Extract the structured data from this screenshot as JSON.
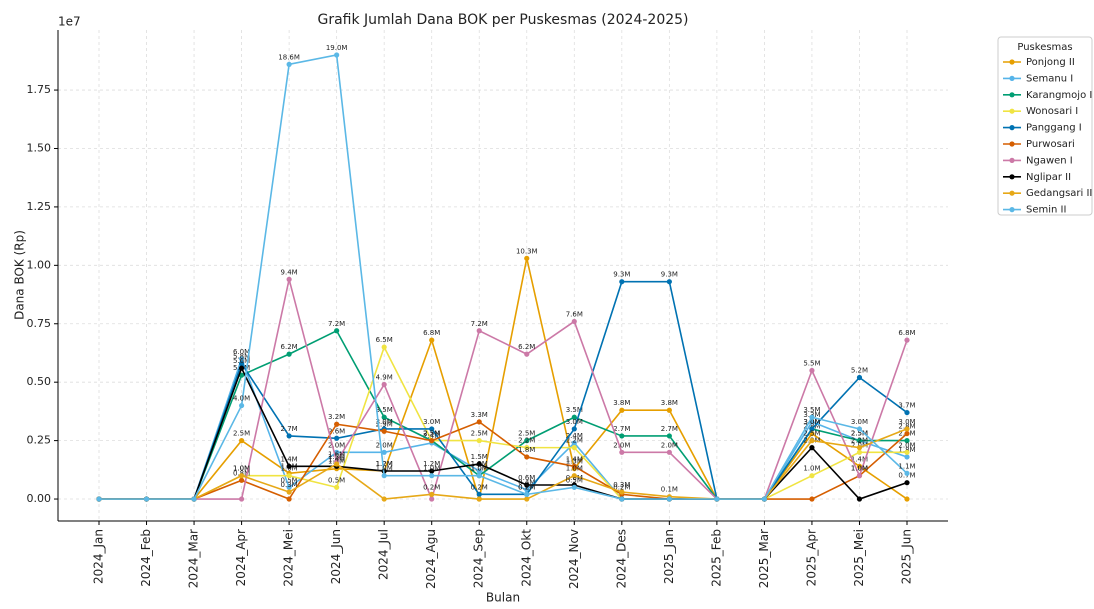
{
  "chart_data": {
    "type": "line",
    "title": "Grafik Jumlah Dana BOK per Puskesmas (2024-2025)",
    "xlabel": "Bulan",
    "ylabel": "Dana BOK (Rp)",
    "y_offset_label": "1e7",
    "legend_title": "Puskesmas",
    "legend": "upper right outside",
    "grid": true,
    "categories": [
      "2024_Jan",
      "2024_Feb",
      "2024_Mar",
      "2024_Apr",
      "2024_Mei",
      "2024_Jun",
      "2024_Jul",
      "2024_Agu",
      "2024_Sep",
      "2024_Okt",
      "2024_Nov",
      "2024_Des",
      "2025_Jan",
      "2025_Feb",
      "2025_Mar",
      "2025_Apr",
      "2025_Mei",
      "2025_Jun"
    ],
    "ylim": [
      -0.094,
      2.007
    ],
    "yticks": [
      {
        "value": 0,
        "label": "0.00"
      },
      {
        "value": 0.25,
        "label": "0.25"
      },
      {
        "value": 0.5,
        "label": "0.50"
      },
      {
        "value": 0.75,
        "label": "0.75"
      },
      {
        "value": 1,
        "label": "1.00"
      },
      {
        "value": 1.25,
        "label": "1.25"
      },
      {
        "value": 1.5,
        "label": "1.50"
      },
      {
        "value": 1.75,
        "label": "1.75"
      }
    ],
    "series": [
      {
        "name": "Ponjong II",
        "color": "#E69F00",
        "values": [
          0,
          0,
          0,
          0.25,
          0.11,
          0.13,
          0.12,
          0.68,
          0,
          1.03,
          0.13,
          0.38,
          0.38,
          0,
          0,
          0.28,
          0.14,
          0
        ],
        "value_labels": [
          null,
          null,
          null,
          "2.5M",
          "1.1M",
          "1.3M",
          "1.2M",
          "6.8M",
          null,
          "10.3M",
          "1.3M",
          "3.8M",
          "3.8M",
          null,
          null,
          "2.8M",
          "1.4M",
          null
        ]
      },
      {
        "name": "Semanu I",
        "color": "#56B4E9",
        "values": [
          0,
          0,
          0,
          0.6,
          0.05,
          0.2,
          0.2,
          0.24,
          0.12,
          0.04,
          0.24,
          0,
          0,
          0,
          0,
          0.33,
          0.25,
          0.18
        ],
        "value_labels": [
          null,
          null,
          null,
          "6.0M",
          "0.5M",
          "2.0M",
          "2.0M",
          "2.4M",
          "1.2M",
          "0.4M",
          "2.4M",
          null,
          null,
          null,
          null,
          "3.3M",
          "2.5M",
          "1.8M"
        ]
      },
      {
        "name": "Karangmojo I",
        "color": "#009E73",
        "values": [
          0,
          0,
          0,
          0.53,
          0.62,
          0.72,
          0.35,
          0.25,
          0.1,
          0.25,
          0.35,
          0.27,
          0.27,
          0,
          0,
          0.3,
          0.25,
          0.25
        ],
        "value_labels": [
          null,
          null,
          null,
          "5.3M",
          "6.2M",
          "7.2M",
          "3.5M",
          "2.5M",
          "1.0M",
          "2.5M",
          "3.5M",
          "2.7M",
          "2.7M",
          null,
          null,
          "3.0M",
          "2.5M",
          "2.5M"
        ]
      },
      {
        "name": "Wonosari I",
        "color": "#F0E442",
        "values": [
          0,
          0,
          0,
          0.1,
          0.1,
          0.05,
          0.65,
          0.25,
          0.25,
          0.22,
          0.22,
          0,
          0,
          0,
          0,
          0.1,
          0.2,
          0.2
        ],
        "value_labels": [
          null,
          null,
          null,
          "1.0M",
          "1.0M",
          "0.5M",
          "6.5M",
          "2.5M",
          "2.5M",
          "2.2M",
          "2.2M",
          null,
          null,
          null,
          null,
          "1.0M",
          "2.0M",
          "2.0M"
        ]
      },
      {
        "name": "Panggang I",
        "color": "#0072B2",
        "values": [
          0,
          0,
          0,
          0.58,
          0.27,
          0.26,
          0.3,
          0.3,
          0.02,
          0.02,
          0.3,
          0.93,
          0.93,
          0,
          0,
          0.3,
          0.52,
          0.37
        ],
        "value_labels": [
          null,
          null,
          null,
          "5.8M",
          "2.7M",
          "2.6M",
          "3.0M",
          "3.0M",
          "0.2M",
          "0.2M",
          "3.0M",
          "9.3M",
          "9.3M",
          null,
          null,
          "3.0M",
          "5.2M",
          "3.7M"
        ]
      },
      {
        "name": "Purwosari",
        "color": "#D55E00",
        "values": [
          0,
          0,
          0,
          0.08,
          0,
          0.32,
          0.29,
          0.25,
          0.33,
          0.18,
          0.14,
          0.02,
          0,
          0,
          0,
          0,
          0.1,
          0.28
        ],
        "value_labels": [
          null,
          null,
          null,
          "0.8M",
          null,
          "3.2M",
          "2.9M",
          "2.5M",
          "3.3M",
          "1.8M",
          "1.4M",
          "0.2M",
          null,
          null,
          null,
          null,
          "1.0M",
          "2.8M"
        ]
      },
      {
        "name": "Ngawen I",
        "color": "#CC79A7",
        "values": [
          0,
          0,
          0,
          0,
          0.94,
          0.16,
          0.49,
          0,
          0.72,
          0.62,
          0.76,
          0.2,
          0.2,
          0,
          0,
          0.55,
          0.1,
          0.68
        ],
        "value_labels": [
          null,
          null,
          null,
          null,
          "9.4M",
          "1.6M",
          "4.9M",
          null,
          "7.2M",
          "6.2M",
          "7.6M",
          "2.0M",
          "2.0M",
          null,
          null,
          "5.5M",
          "1.0M",
          "6.8M"
        ]
      },
      {
        "name": "Nglipar II",
        "color": "#000000",
        "values": [
          0,
          0,
          0,
          0.56,
          0.14,
          0.14,
          0.12,
          0.12,
          0.15,
          0.06,
          0.06,
          0,
          0,
          0,
          0,
          0.22,
          0,
          0.07
        ],
        "value_labels": [
          null,
          null,
          null,
          "5.6M",
          "1.4M",
          "1.4M",
          "1.2M",
          "1.2M",
          "1.5M",
          "0.6M",
          "0.6M",
          null,
          null,
          null,
          null,
          "2.2M",
          null,
          "0.7M"
        ]
      },
      {
        "name": "Gedangsari II",
        "color": "#E6A817",
        "values": [
          0,
          0,
          0,
          0.1,
          0.03,
          0.15,
          0,
          0.02,
          0,
          0,
          0.1,
          0.03,
          0.01,
          0,
          0,
          0.25,
          0.22,
          0.3
        ],
        "value_labels": [
          null,
          null,
          null,
          "1.0M",
          "0.3M",
          "1.5M",
          null,
          "0.2M",
          null,
          null,
          "1.0M",
          "0.3M",
          "0.1M",
          null,
          null,
          "2.5M",
          "2.2M",
          "3.0M"
        ]
      },
      {
        "name": "Semin II",
        "color": "#5BB8E6",
        "values": [
          0,
          0,
          0,
          0.4,
          1.86,
          1.9,
          0.1,
          0.1,
          0.1,
          0.02,
          0.05,
          0,
          0,
          0,
          0,
          0.35,
          0.3,
          0.11
        ],
        "value_labels": [
          null,
          null,
          null,
          "4.0M",
          "18.6M",
          "19.0M",
          "1.0M",
          "1.0M",
          "1.0M",
          "0.2M",
          "0.5M",
          null,
          null,
          null,
          null,
          "3.5M",
          "3.0M",
          "1.1M"
        ]
      }
    ]
  }
}
